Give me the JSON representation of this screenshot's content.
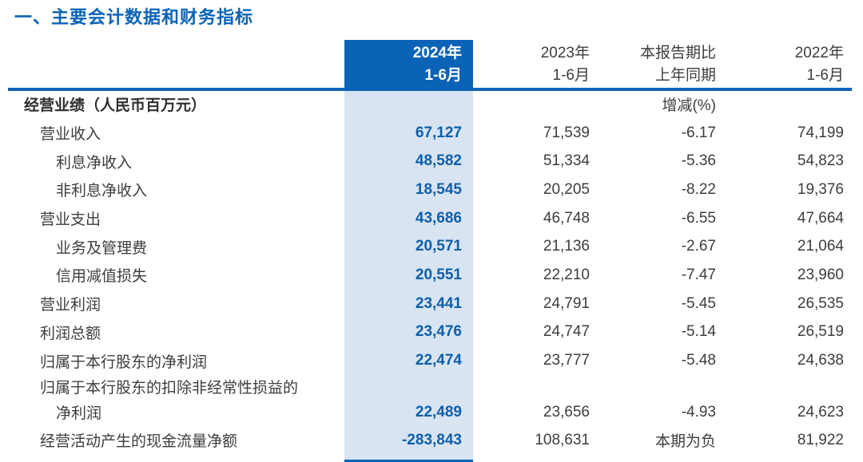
{
  "title": "一、主要会计数据和财务指标",
  "colors": {
    "brand_blue": "#0b63b8",
    "column_highlight": "#d8e4f2",
    "value_blue": "#0e5fab",
    "body_text": "#3d3d3d"
  },
  "table": {
    "columns": [
      {
        "label": "2024年\n1-6月",
        "highlighted": true
      },
      {
        "label": "2023年\n1-6月",
        "highlighted": false
      },
      {
        "label": "本报告期比\n上年同期",
        "highlighted": false
      },
      {
        "label": "2022年\n1-6月",
        "highlighted": false
      }
    ],
    "section_row": {
      "label": "经营业绩（人民币百万元）",
      "change_note": "增减(%)"
    },
    "rows": [
      {
        "label": "营业收入",
        "indent": 1,
        "v2024": "67,127",
        "v2023": "71,539",
        "change": "-6.17",
        "v2022": "74,199"
      },
      {
        "label": "利息净收入",
        "indent": 2,
        "v2024": "48,582",
        "v2023": "51,334",
        "change": "-5.36",
        "v2022": "54,823"
      },
      {
        "label": "非利息净收入",
        "indent": 2,
        "v2024": "18,545",
        "v2023": "20,205",
        "change": "-8.22",
        "v2022": "19,376"
      },
      {
        "label": "营业支出",
        "indent": 1,
        "v2024": "43,686",
        "v2023": "46,748",
        "change": "-6.55",
        "v2022": "47,664"
      },
      {
        "label": "业务及管理费",
        "indent": 2,
        "v2024": "20,571",
        "v2023": "21,136",
        "change": "-2.67",
        "v2022": "21,064"
      },
      {
        "label": "信用减值损失",
        "indent": 2,
        "v2024": "20,551",
        "v2023": "22,210",
        "change": "-7.47",
        "v2022": "23,960"
      },
      {
        "label": "营业利润",
        "indent": 1,
        "v2024": "23,441",
        "v2023": "24,791",
        "change": "-5.45",
        "v2022": "26,535"
      },
      {
        "label": "利润总额",
        "indent": 1,
        "v2024": "23,476",
        "v2023": "24,747",
        "change": "-5.14",
        "v2022": "26,519"
      },
      {
        "label": "归属于本行股东的净利润",
        "indent": 1,
        "v2024": "22,474",
        "v2023": "23,777",
        "change": "-5.48",
        "v2022": "24,638"
      },
      {
        "label": "归属于本行股东的扣除非经常性损益的",
        "label2": "净利润",
        "indent": 1,
        "v2024": "22,489",
        "v2023": "23,656",
        "change": "-4.93",
        "v2022": "24,623"
      },
      {
        "label": "经营活动产生的现金流量净额",
        "indent": 1,
        "v2024": "-283,843",
        "v2023": "108,631",
        "change": "本期为负",
        "v2022": "81,922"
      }
    ]
  }
}
